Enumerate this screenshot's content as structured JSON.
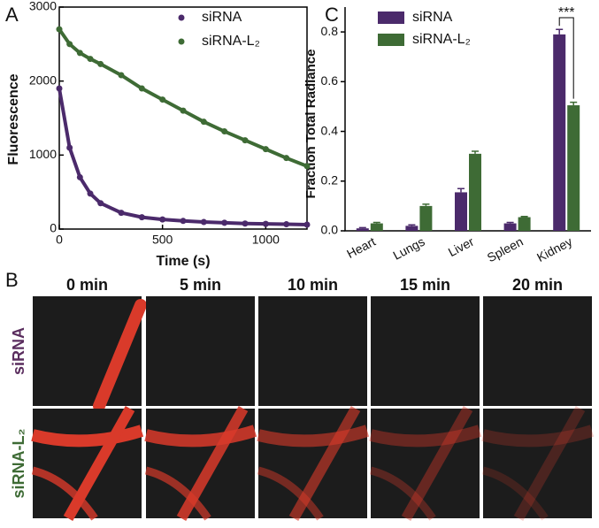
{
  "chart_data": [
    {
      "type": "scatter",
      "panel_label": "A",
      "x_label": "Time (s)",
      "y_label": "Fluorescence",
      "x": [
        0,
        50,
        100,
        150,
        200,
        300,
        400,
        500,
        600,
        700,
        800,
        900,
        1000,
        1100,
        1200
      ],
      "series": [
        {
          "name": "siRNA",
          "color": "#4b2a6b",
          "values": [
            1900,
            1100,
            700,
            480,
            350,
            220,
            160,
            130,
            110,
            95,
            85,
            75,
            70,
            65,
            60
          ]
        },
        {
          "name": "siRNA-L₂",
          "color": "#3e6b35",
          "values": [
            2700,
            2500,
            2380,
            2300,
            2230,
            2080,
            1900,
            1750,
            1600,
            1450,
            1320,
            1200,
            1080,
            960,
            850
          ]
        }
      ],
      "xlim": [
        0,
        1200
      ],
      "xticks": [
        0,
        500,
        1000
      ],
      "ylim": [
        0,
        3000
      ],
      "yticks": [
        0,
        1000,
        2000,
        3000
      ]
    },
    {
      "type": "bar",
      "panel_label": "C",
      "y_label": "Fraction  Total  Radiance",
      "categories": [
        "Heart",
        "Lungs",
        "Liver",
        "Spleen",
        "Kidney"
      ],
      "series": [
        {
          "name": "siRNA",
          "color": "#4b2a6b",
          "values": [
            0.01,
            0.02,
            0.155,
            0.03,
            0.79
          ],
          "errors": [
            0.003,
            0.004,
            0.015,
            0.004,
            0.02
          ]
        },
        {
          "name": "siRNA-L₂",
          "color": "#3e6b35",
          "values": [
            0.03,
            0.1,
            0.31,
            0.055,
            0.505
          ],
          "errors": [
            0.004,
            0.007,
            0.01,
            0.003,
            0.012
          ]
        }
      ],
      "annotation": "***",
      "ylim": [
        0,
        0.9
      ],
      "yticks": [
        {
          "value": 0,
          "label": "0.0"
        },
        0.2,
        0.4,
        0.6,
        0.8
      ]
    }
  ],
  "image_grid": {
    "panel_label": "B",
    "columns": [
      "0 min",
      "5 min",
      "10 min",
      "15 min",
      "20 min"
    ],
    "rows": [
      "siRNA",
      "siRNA-L₂"
    ]
  }
}
